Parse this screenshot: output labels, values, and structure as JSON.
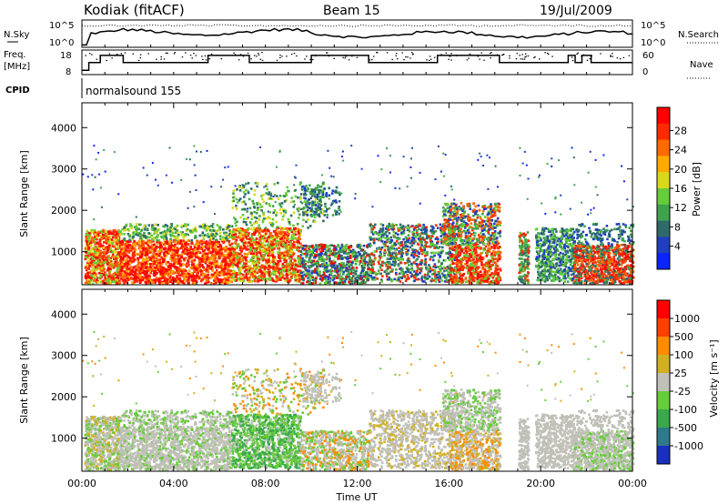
{
  "header": {
    "title": "Kodiak (fitACF)",
    "beam": "Beam 15",
    "date": "19/Jul/2009"
  },
  "top_panels": {
    "nsky_label": "N.Sky",
    "nsky_ticks": [
      "10^5",
      "10^0"
    ],
    "nsearch_label": "N.Search",
    "nsearch_ticks": [
      "10^5",
      "10^0"
    ],
    "freq_label": "Freq.",
    "freq_unit": "[MHz]",
    "freq_ticks": [
      "18",
      "8"
    ],
    "nave_label": "Nave",
    "nave_ticks": [
      "60",
      "0"
    ],
    "cpid_label": "CPID",
    "cpid_value": "normalsound 155"
  },
  "chart_data": [
    {
      "type": "heatmap",
      "ylabel": "Slant Range [km]",
      "ylim": [
        200,
        4600
      ],
      "yticks": [
        "1000",
        "2000",
        "3000",
        "4000"
      ],
      "xlim_hours": [
        0,
        24
      ],
      "colorbar": {
        "label": "Power [dB]",
        "ticks": [
          "4",
          "8",
          "12",
          "16",
          "20",
          "24",
          "28"
        ],
        "colors": [
          "#0a23ff",
          "#1f3fc0",
          "#2f6a6a",
          "#3fa34b",
          "#66cc3a",
          "#d9d91a",
          "#ffaa00",
          "#ff6a00",
          "#ff2a00",
          "#ff0000"
        ]
      }
    },
    {
      "type": "heatmap",
      "ylabel": "Slant Range [km]",
      "ylim": [
        200,
        4600
      ],
      "yticks": [
        "1000",
        "2000",
        "3000",
        "4000"
      ],
      "xlim_hours": [
        0,
        24
      ],
      "xticks": [
        "00:00",
        "04:00",
        "08:00",
        "12:00",
        "16:00",
        "20:00",
        "00:00"
      ],
      "xlabel": "Time UT",
      "colorbar": {
        "label": "Velocity [m s⁻¹]",
        "ticks": [
          "1000",
          "500",
          "100",
          "25",
          "-25",
          "-100",
          "-500",
          "-1000"
        ],
        "colors": [
          "#1a2fc0",
          "#2f7a8a",
          "#3aa84b",
          "#66cc3a",
          "#c0c0b8",
          "#d0b020",
          "#ff8c00",
          "#ff4000",
          "#ff0000"
        ]
      }
    }
  ]
}
